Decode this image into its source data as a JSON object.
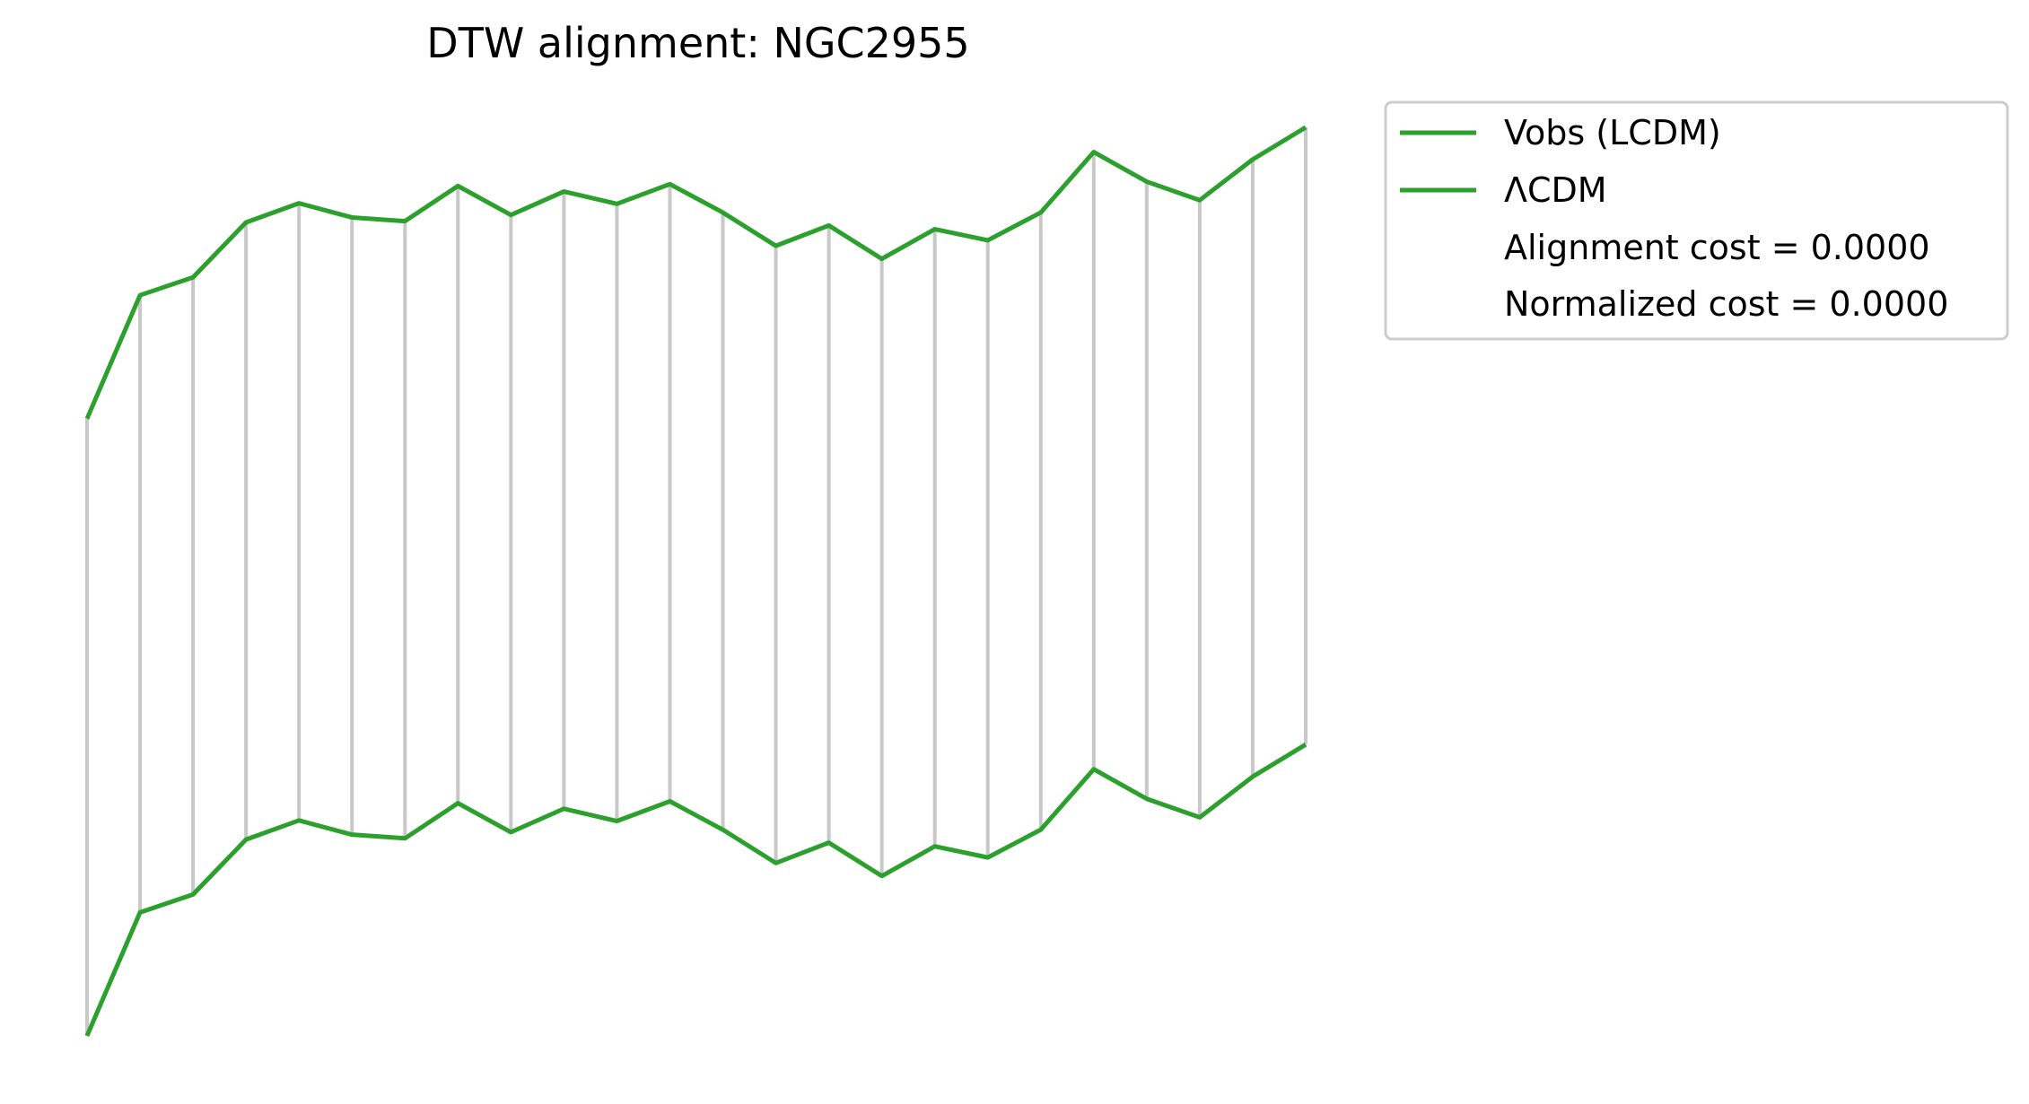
{
  "chart_data": {
    "type": "line",
    "title": "DTW alignment: NGC2955",
    "xlabel": "",
    "ylabel": "",
    "axes_visible": false,
    "grid": false,
    "legend_placement": "outside upper-right",
    "line_color": "#2ca02c",
    "connector_color": "#c8c8c8",
    "vertical_offset": 1.0,
    "x": [
      0,
      1,
      2,
      3,
      4,
      5,
      6,
      7,
      8,
      9,
      10,
      11,
      12,
      13,
      14,
      15,
      16,
      17,
      18,
      19,
      20,
      21,
      22,
      23
    ],
    "series": [
      {
        "name": "Vobs (LCDM)",
        "values": [
          0.0,
          0.2,
          0.229,
          0.318,
          0.349,
          0.326,
          0.32,
          0.377,
          0.33,
          0.368,
          0.348,
          0.38,
          0.334,
          0.28,
          0.313,
          0.259,
          0.307,
          0.289,
          0.334,
          0.432,
          0.384,
          0.354,
          0.42,
          0.472
        ]
      },
      {
        "name": "ΛCDM",
        "values": [
          0.0,
          0.2,
          0.229,
          0.318,
          0.349,
          0.326,
          0.32,
          0.377,
          0.33,
          0.368,
          0.348,
          0.38,
          0.334,
          0.28,
          0.313,
          0.259,
          0.307,
          0.289,
          0.334,
          0.432,
          0.384,
          0.354,
          0.42,
          0.472
        ]
      }
    ],
    "alignment_pairs": "identity",
    "legend": {
      "entries": [
        {
          "label": "Vobs (LCDM)",
          "has_line": true
        },
        {
          "label": "ΛCDM",
          "has_line": true
        },
        {
          "label": "Alignment cost = 0.0000",
          "has_line": false
        },
        {
          "label": "Normalized cost = 0.0000",
          "has_line": false
        }
      ]
    }
  }
}
